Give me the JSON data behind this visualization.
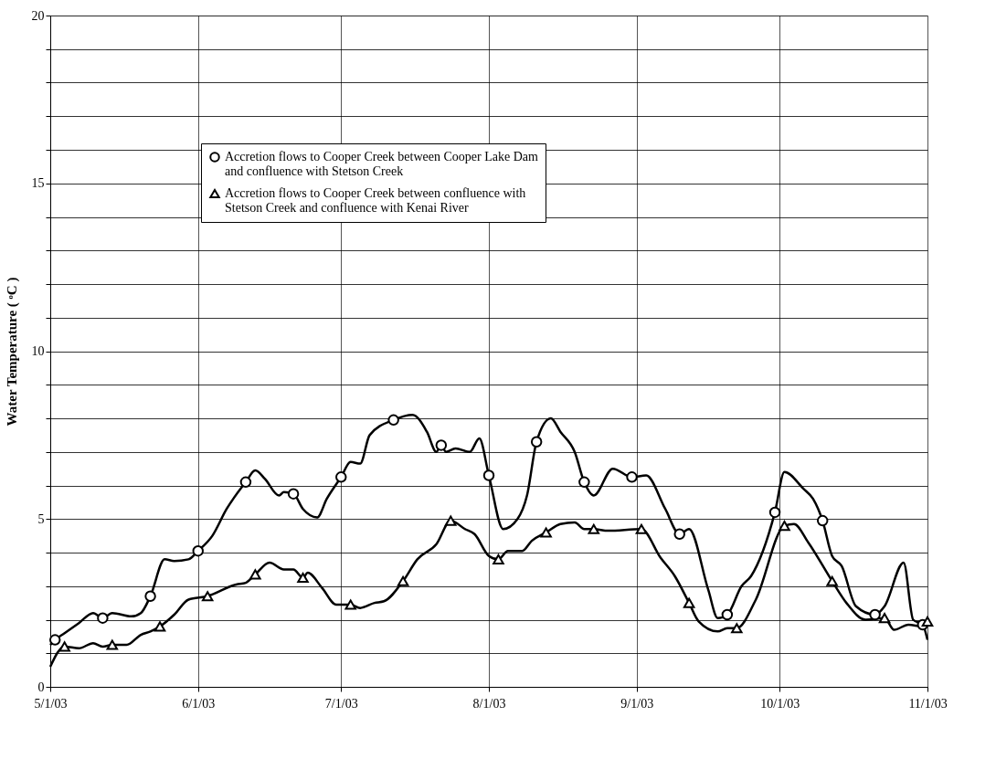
{
  "chart_data": {
    "type": "line",
    "ylabel": "Water Temperature ( ᵒC )",
    "xlim": [
      "2003-05-01",
      "2003-11-01"
    ],
    "xticks": [
      {
        "value": "2003-05-01",
        "label": "5/1/03"
      },
      {
        "value": "2003-06-01",
        "label": "6/1/03"
      },
      {
        "value": "2003-07-01",
        "label": "7/1/03"
      },
      {
        "value": "2003-08-01",
        "label": "8/1/03"
      },
      {
        "value": "2003-09-01",
        "label": "9/1/03"
      },
      {
        "value": "2003-10-01",
        "label": "10/1/03"
      },
      {
        "value": "2003-11-01",
        "label": "11/1/03"
      }
    ],
    "ylim": [
      0,
      20
    ],
    "yticks": [
      0,
      {
        "value": 1,
        "label": null
      },
      {
        "value": 2,
        "label": null
      },
      {
        "value": 3,
        "label": null
      },
      {
        "value": 4,
        "label": null
      },
      5,
      {
        "value": 6,
        "label": null
      },
      {
        "value": 7,
        "label": null
      },
      {
        "value": 8,
        "label": null
      },
      {
        "value": 9,
        "label": null
      },
      10,
      {
        "value": 11,
        "label": null
      },
      {
        "value": 12,
        "label": null
      },
      {
        "value": 13,
        "label": null
      },
      {
        "value": 14,
        "label": null
      },
      15,
      {
        "value": 16,
        "label": null
      },
      {
        "value": 17,
        "label": null
      },
      {
        "value": 18,
        "label": null
      },
      {
        "value": 19,
        "label": null
      },
      20
    ],
    "grid": true,
    "legend": "top",
    "line_style": "solid",
    "series": [
      {
        "color": "#000000",
        "marker": "none",
        "x": [
          "2003-05-01",
          "2003-05-02",
          "2003-05-04",
          "2003-05-07",
          "2003-05-10",
          "2003-05-12",
          "2003-05-14",
          "2003-05-18",
          "2003-05-20",
          "2003-05-22",
          "2003-05-25",
          "2003-05-27",
          "2003-05-30",
          "2003-06-01",
          "2003-06-04",
          "2003-06-07",
          "2003-06-11",
          "2003-06-13",
          "2003-06-15",
          "2003-06-18",
          "2003-06-19",
          "2003-06-21",
          "2003-06-23",
          "2003-06-26",
          "2003-06-28",
          "2003-07-01",
          "2003-07-03",
          "2003-07-05",
          "2003-07-07",
          "2003-07-12",
          "2003-07-16",
          "2003-07-19",
          "2003-07-21",
          "2003-07-22",
          "2003-07-23",
          "2003-07-25",
          "2003-07-28",
          "2003-07-30",
          "2003-08-01",
          "2003-08-04",
          "2003-08-07",
          "2003-08-09",
          "2003-08-11",
          "2003-08-14",
          "2003-08-16",
          "2003-08-19",
          "2003-08-21",
          "2003-08-23",
          "2003-08-27",
          "2003-08-31",
          "2003-09-03",
          "2003-09-07",
          "2003-09-10",
          "2003-09-12",
          "2003-09-16",
          "2003-09-18",
          "2003-09-20",
          "2003-09-23",
          "2003-09-25",
          "2003-09-30",
          "2003-10-02",
          "2003-10-06",
          "2003-10-08",
          "2003-10-10",
          "2003-10-12",
          "2003-10-14",
          "2003-10-17",
          "2003-10-21",
          "2003-10-23",
          "2003-10-27",
          "2003-10-29",
          "2003-10-31",
          "2003-11-01"
        ],
        "values": [
          1.25,
          1.4,
          1.6,
          1.9,
          2.2,
          2.05,
          2.2,
          2.1,
          2.2,
          2.7,
          3.8,
          3.75,
          3.8,
          4.05,
          4.5,
          5.3,
          6.1,
          6.45,
          6.2,
          5.7,
          5.8,
          5.75,
          5.3,
          5.05,
          5.6,
          6.25,
          6.7,
          6.65,
          7.5,
          7.95,
          8.1,
          7.6,
          7.0,
          7.2,
          7.0,
          7.1,
          7.0,
          7.4,
          6.3,
          4.7,
          5.0,
          5.7,
          7.3,
          8.0,
          7.6,
          7.0,
          6.1,
          5.7,
          6.5,
          6.25,
          6.3,
          5.3,
          4.55,
          4.7,
          2.9,
          2.05,
          2.15,
          3.0,
          3.3,
          5.2,
          6.4,
          5.9,
          5.6,
          4.95,
          3.9,
          3.6,
          2.4,
          2.15,
          2.4,
          3.7,
          2.0,
          1.85,
          1.4
        ]
      },
      {
        "color": "#000000",
        "marker": "none",
        "x": [
          "2003-05-01",
          "2003-05-04",
          "2003-05-07",
          "2003-05-10",
          "2003-05-12",
          "2003-05-14",
          "2003-05-17",
          "2003-05-20",
          "2003-05-22",
          "2003-05-24",
          "2003-05-27",
          "2003-05-30",
          "2003-06-03",
          "2003-06-09",
          "2003-06-11",
          "2003-06-13",
          "2003-06-16",
          "2003-06-19",
          "2003-06-21",
          "2003-06-23",
          "2003-06-24",
          "2003-06-27",
          "2003-06-30",
          "2003-07-03",
          "2003-07-05",
          "2003-07-08",
          "2003-07-10",
          "2003-07-14",
          "2003-07-17",
          "2003-07-21",
          "2003-07-24",
          "2003-07-27",
          "2003-07-29",
          "2003-08-01",
          "2003-08-03",
          "2003-08-05",
          "2003-08-08",
          "2003-08-10",
          "2003-08-13",
          "2003-08-16",
          "2003-08-19",
          "2003-08-21",
          "2003-08-23",
          "2003-08-26",
          "2003-09-02",
          "2003-09-06",
          "2003-09-09",
          "2003-09-12",
          "2003-09-14",
          "2003-09-18",
          "2003-09-20",
          "2003-09-22",
          "2003-09-26",
          "2003-10-02",
          "2003-10-04",
          "2003-10-07",
          "2003-10-12",
          "2003-10-15",
          "2003-10-19",
          "2003-10-23",
          "2003-10-25",
          "2003-10-28",
          "2003-10-31",
          "2003-11-01"
        ],
        "values": [
          0.6,
          1.2,
          1.15,
          1.3,
          1.2,
          1.25,
          1.25,
          1.55,
          1.65,
          1.8,
          2.15,
          2.6,
          2.7,
          3.05,
          3.1,
          3.35,
          3.7,
          3.5,
          3.5,
          3.25,
          3.4,
          2.95,
          2.45,
          2.45,
          2.35,
          2.5,
          2.55,
          3.15,
          3.8,
          4.25,
          4.95,
          4.7,
          4.55,
          3.9,
          3.8,
          4.05,
          4.05,
          4.35,
          4.6,
          4.85,
          4.9,
          4.7,
          4.7,
          4.65,
          4.7,
          3.85,
          3.3,
          2.5,
          1.95,
          1.65,
          1.75,
          1.75,
          2.6,
          4.8,
          4.85,
          4.3,
          3.15,
          2.5,
          2.0,
          2.05,
          1.7,
          1.85,
          1.8,
          1.95
        ]
      },
      {
        "type": "scatter",
        "name": "Accretion flows to Cooper Creek between Cooper Lake Dam and confluence with Stetson Creek",
        "color": "#000000",
        "marker": "circle",
        "x": [
          "2003-05-02",
          "2003-05-12",
          "2003-05-22",
          "2003-06-01",
          "2003-06-11",
          "2003-06-21",
          "2003-07-01",
          "2003-07-12",
          "2003-07-22",
          "2003-08-01",
          "2003-08-11",
          "2003-08-21",
          "2003-08-31",
          "2003-09-10",
          "2003-09-20",
          "2003-09-30",
          "2003-10-10",
          "2003-10-21",
          "2003-10-31"
        ],
        "values": [
          1.4,
          2.05,
          2.7,
          4.05,
          6.1,
          5.75,
          6.25,
          7.95,
          7.2,
          6.3,
          7.3,
          6.1,
          6.25,
          4.55,
          2.15,
          5.2,
          4.95,
          2.15,
          1.85
        ]
      },
      {
        "type": "scatter",
        "name": "Accretion flows to Cooper Creek between confluence with Stetson Creek and confluence with Kenai River",
        "color": "#000000",
        "marker": "triangle",
        "x": [
          "2003-05-04",
          "2003-05-14",
          "2003-05-24",
          "2003-06-03",
          "2003-06-13",
          "2003-06-23",
          "2003-07-03",
          "2003-07-14",
          "2003-07-24",
          "2003-08-03",
          "2003-08-13",
          "2003-08-23",
          "2003-09-02",
          "2003-09-12",
          "2003-09-22",
          "2003-10-02",
          "2003-10-12",
          "2003-10-23",
          "2003-11-01"
        ],
        "values": [
          1.2,
          1.25,
          1.8,
          2.7,
          3.35,
          3.25,
          2.45,
          3.15,
          4.95,
          3.8,
          4.6,
          4.7,
          4.7,
          2.5,
          1.75,
          4.8,
          3.15,
          2.05,
          1.95
        ]
      }
    ]
  }
}
